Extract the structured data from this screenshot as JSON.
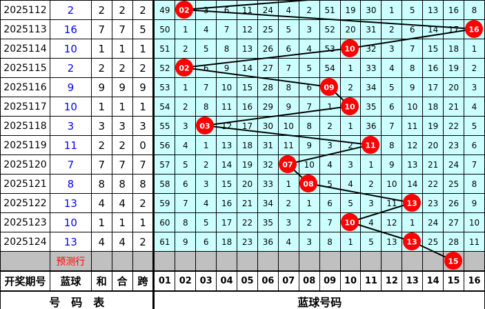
{
  "rows": [
    {
      "period": "2025112",
      "blue": 2,
      "sum": 2,
      "he": 2,
      "span": 2,
      "cells": [
        49,
        null,
        3,
        6,
        11,
        24,
        4,
        2,
        51,
        19,
        30,
        1,
        5,
        13,
        16,
        8
      ]
    },
    {
      "period": "2025113",
      "blue": 16,
      "sum": 7,
      "he": 7,
      "span": 5,
      "cells": [
        50,
        1,
        4,
        7,
        12,
        25,
        5,
        3,
        52,
        20,
        31,
        2,
        6,
        14,
        17,
        null
      ]
    },
    {
      "period": "2025114",
      "blue": 10,
      "sum": 1,
      "he": 1,
      "span": 1,
      "cells": [
        51,
        2,
        5,
        8,
        13,
        26,
        6,
        4,
        53,
        null,
        32,
        3,
        7,
        15,
        18,
        1
      ]
    },
    {
      "period": "2025115",
      "blue": 2,
      "sum": 2,
      "he": 2,
      "span": 2,
      "cells": [
        52,
        null,
        6,
        9,
        14,
        27,
        7,
        5,
        54,
        1,
        33,
        4,
        8,
        16,
        19,
        2
      ]
    },
    {
      "period": "2025116",
      "blue": 9,
      "sum": 9,
      "he": 9,
      "span": 9,
      "cells": [
        53,
        1,
        7,
        10,
        15,
        28,
        8,
        6,
        null,
        2,
        34,
        5,
        9,
        17,
        20,
        3
      ]
    },
    {
      "period": "2025117",
      "blue": 10,
      "sum": 1,
      "he": 1,
      "span": 1,
      "cells": [
        54,
        2,
        8,
        11,
        16,
        29,
        9,
        7,
        1,
        null,
        35,
        6,
        10,
        18,
        21,
        4
      ]
    },
    {
      "period": "2025118",
      "blue": 3,
      "sum": 3,
      "he": 3,
      "span": 3,
      "cells": [
        55,
        3,
        null,
        12,
        17,
        30,
        10,
        8,
        2,
        1,
        36,
        7,
        11,
        19,
        22,
        5
      ]
    },
    {
      "period": "2025119",
      "blue": 11,
      "sum": 2,
      "he": 2,
      "span": 0,
      "cells": [
        56,
        4,
        1,
        13,
        18,
        31,
        11,
        9,
        3,
        2,
        null,
        8,
        12,
        20,
        23,
        6
      ]
    },
    {
      "period": "2025120",
      "blue": 7,
      "sum": 7,
      "he": 7,
      "span": 7,
      "cells": [
        57,
        5,
        2,
        14,
        19,
        32,
        null,
        10,
        4,
        3,
        1,
        9,
        13,
        21,
        24,
        7
      ]
    },
    {
      "period": "2025121",
      "blue": 8,
      "sum": 8,
      "he": 8,
      "span": 8,
      "cells": [
        58,
        6,
        3,
        15,
        20,
        33,
        1,
        null,
        5,
        4,
        2,
        10,
        14,
        22,
        25,
        8
      ]
    },
    {
      "period": "2025122",
      "blue": 13,
      "sum": 4,
      "he": 4,
      "span": 2,
      "cells": [
        59,
        7,
        4,
        16,
        21,
        34,
        2,
        1,
        6,
        5,
        3,
        11,
        null,
        23,
        26,
        9
      ]
    },
    {
      "period": "2025123",
      "blue": 10,
      "sum": 1,
      "he": 1,
      "span": 1,
      "cells": [
        60,
        8,
        5,
        17,
        22,
        35,
        3,
        2,
        7,
        null,
        4,
        12,
        1,
        24,
        27,
        10
      ]
    },
    {
      "period": "2025124",
      "blue": 13,
      "sum": 4,
      "he": 4,
      "span": 2,
      "cells": [
        61,
        9,
        6,
        18,
        23,
        36,
        4,
        3,
        8,
        1,
        5,
        13,
        null,
        25,
        28,
        11
      ]
    }
  ],
  "forecast": {
    "label": "预测行",
    "blue": 15
  },
  "header": {
    "period": "开奖期号",
    "blue": "蓝球",
    "sum": "和",
    "he": "合",
    "span": "跨",
    "numbers": [
      "01",
      "02",
      "03",
      "04",
      "05",
      "06",
      "07",
      "08",
      "09",
      "10",
      "11",
      "12",
      "13",
      "14",
      "15",
      "16"
    ]
  },
  "footer": {
    "left": "号　码　表",
    "right": "蓝球号码"
  },
  "colors": {
    "cell_bg": "#ccffff",
    "ball": "#ff0000",
    "blue_text": "#0000ff",
    "forecast_bg": "#c0c0c0"
  }
}
